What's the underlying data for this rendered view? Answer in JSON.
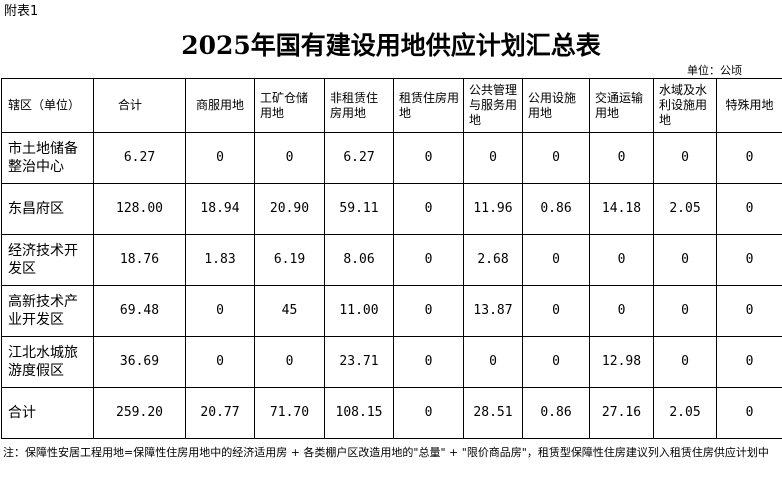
{
  "attachment": "附表1",
  "title": "2025年国有建设用地供应计划汇总表",
  "unit": "单位：公顷",
  "headers": [
    "辖区（单位）",
    "合计",
    "商服用地",
    "工矿仓储用地",
    "非租赁住房用地",
    "租赁住房用地",
    "公共管理与服务用地",
    "公用设施用地",
    "交通运输用地",
    "水域及水利设施用地",
    "特殊用地"
  ],
  "rows": [
    {
      "district": "市土地储备整治中心",
      "values": [
        "6.27",
        "0",
        "0",
        "6.27",
        "0",
        "0",
        "0",
        "0",
        "0",
        "0"
      ]
    },
    {
      "district": "东昌府区",
      "values": [
        "128.00",
        "18.94",
        "20.90",
        "59.11",
        "0",
        "11.96",
        "0.86",
        "14.18",
        "2.05",
        "0"
      ]
    },
    {
      "district": "经济技术开发区",
      "values": [
        "18.76",
        "1.83",
        "6.19",
        "8.06",
        "0",
        "2.68",
        "0",
        "0",
        "0",
        "0"
      ]
    },
    {
      "district": "高新技术产业开发区",
      "values": [
        "69.48",
        "0",
        "45",
        "11.00",
        "0",
        "13.87",
        "0",
        "0",
        "0",
        "0"
      ]
    },
    {
      "district": "江北水城旅游度假区",
      "values": [
        "36.69",
        "0",
        "0",
        "23.71",
        "0",
        "0",
        "0",
        "12.98",
        "0",
        "0"
      ]
    }
  ],
  "total": {
    "district": "合计",
    "values": [
      "259.20",
      "20.77",
      "71.70",
      "108.15",
      "0",
      "28.51",
      "0.86",
      "27.16",
      "2.05",
      "0"
    ]
  },
  "note": "注：保障性安居工程用地=保障性住房用地中的经济适用房 + 各类棚户区改造用地的\"总量\"  + \"限价商品房\"，租赁型保障性住房建议列入租赁住房供应计划中"
}
